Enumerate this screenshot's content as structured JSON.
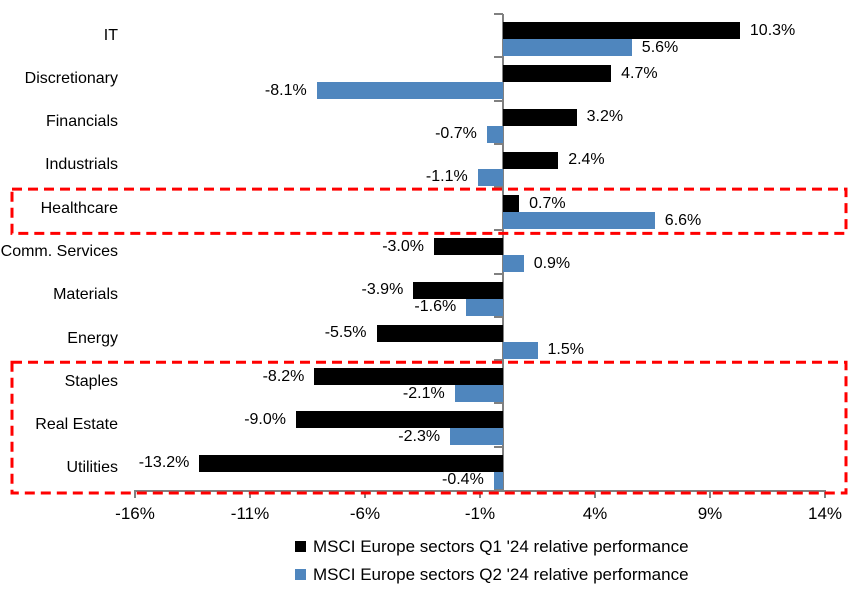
{
  "chart_data": {
    "type": "bar",
    "orientation": "horizontal",
    "title": "",
    "categories": [
      "IT",
      "Discretionary",
      "Financials",
      "Industrials",
      "Healthcare",
      "Comm. Services",
      "Materials",
      "Energy",
      "Staples",
      "Real Estate",
      "Utilities"
    ],
    "series": [
      {
        "name": "MSCI Europe sectors Q1 '24 relative performance",
        "color": "#000000",
        "values": [
          10.3,
          4.7,
          3.2,
          2.4,
          0.7,
          -3.0,
          -3.9,
          -5.5,
          -8.2,
          -9.0,
          -13.2
        ]
      },
      {
        "name": "MSCI Europe sectors Q2 '24 relative performance",
        "color": "#4F86BE",
        "values": [
          5.6,
          -8.1,
          -0.7,
          -1.1,
          6.6,
          0.9,
          -1.6,
          1.5,
          -2.1,
          -2.3,
          -0.4
        ]
      }
    ],
    "data_label_decimals": 1,
    "data_label_suffix": "%",
    "x_ticks": [
      {
        "value": -16,
        "label": "-16%"
      },
      {
        "value": -11,
        "label": "-11%"
      },
      {
        "value": -6,
        "label": "-6%"
      },
      {
        "value": -1,
        "label": "-1%"
      },
      {
        "value": 4,
        "label": "4%"
      },
      {
        "value": 9,
        "label": "9%"
      },
      {
        "value": 14,
        "label": "14%"
      }
    ],
    "xlim": [
      -16,
      14
    ],
    "grid": false,
    "legend_position": "bottom",
    "axis_color": "#808080",
    "text_color": "#000000",
    "background": "#FFFFFF",
    "highlight_boxes": [
      {
        "from_category": "Healthcare",
        "to_category": "Healthcare",
        "color": "#FF0000",
        "style": "dashed"
      },
      {
        "from_category": "Staples",
        "to_category": "Utilities",
        "color": "#FF0000",
        "style": "dashed"
      }
    ]
  }
}
